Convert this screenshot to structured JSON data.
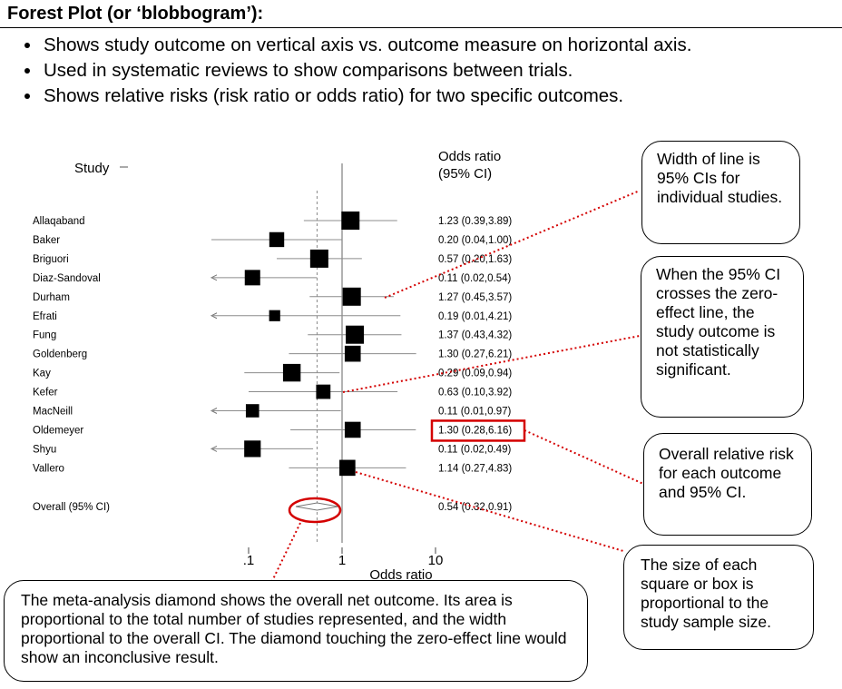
{
  "header": {
    "title": "Forest Plot (or ‘blobbogram’):",
    "bullets": [
      "Shows study outcome on vertical axis vs. outcome measure on horizontal axis.",
      "Used in systematic reviews to show comparisons between trials.",
      "Shows relative risks (risk ratio or odds ratio) for two specific outcomes."
    ]
  },
  "chart_data": {
    "type": "forest",
    "study_header": "Study",
    "or_header_line1": "Odds ratio",
    "or_header_line2": "(95% CI)",
    "xlabel": "Odds ratio",
    "x_scale": "log",
    "xlim": [
      0.04,
      12
    ],
    "xticks": [
      {
        "value": 0.1,
        "label": ".1"
      },
      {
        "value": 1,
        "label": "1"
      },
      {
        "value": 10,
        "label": "10"
      }
    ],
    "studies": [
      {
        "name": "Allaqaband",
        "or": 1.23,
        "lo": 0.39,
        "hi": 3.89,
        "weight": 1.0,
        "label": "1.23 (0.39,3.89)"
      },
      {
        "name": "Baker",
        "or": 0.2,
        "lo": 0.04,
        "hi": 1.0,
        "weight": 0.7,
        "label": "0.20 (0.04,1.00)"
      },
      {
        "name": "Briguori",
        "or": 0.57,
        "lo": 0.2,
        "hi": 1.63,
        "weight": 1.0,
        "label": "0.57 (0.20,1.63)"
      },
      {
        "name": "Diaz-Sandoval",
        "or": 0.11,
        "lo": 0.02,
        "hi": 0.54,
        "weight": 0.75,
        "label": "0.11 (0.02,0.54)"
      },
      {
        "name": "Durham",
        "or": 1.27,
        "lo": 0.45,
        "hi": 3.57,
        "weight": 1.0,
        "label": "1.27 (0.45,3.57)"
      },
      {
        "name": "Efrati",
        "or": 0.19,
        "lo": 0.01,
        "hi": 4.21,
        "weight": 0.35,
        "label": "0.19 (0.01,4.21)"
      },
      {
        "name": "Fung",
        "or": 1.37,
        "lo": 0.43,
        "hi": 4.32,
        "weight": 1.0,
        "label": "1.37 (0.43,4.32)"
      },
      {
        "name": "Goldenberg",
        "or": 1.3,
        "lo": 0.27,
        "hi": 6.21,
        "weight": 0.8,
        "label": "1.30 (0.27,6.21)"
      },
      {
        "name": "Kay",
        "or": 0.29,
        "lo": 0.09,
        "hi": 0.94,
        "weight": 0.95,
        "label": "0.29 (0.09,0.94)"
      },
      {
        "name": "Kefer",
        "or": 0.63,
        "lo": 0.1,
        "hi": 3.92,
        "weight": 0.65,
        "label": "0.63 (0.10,3.92)"
      },
      {
        "name": "MacNeill",
        "or": 0.11,
        "lo": 0.01,
        "hi": 0.97,
        "weight": 0.55,
        "label": "0.11 (0.01,0.97)"
      },
      {
        "name": "Oldemeyer",
        "or": 1.3,
        "lo": 0.28,
        "hi": 6.16,
        "weight": 0.8,
        "label": "1.30 (0.28,6.16)"
      },
      {
        "name": "Shyu",
        "or": 0.11,
        "lo": 0.02,
        "hi": 0.49,
        "weight": 0.85,
        "label": "0.11 (0.02,0.49)"
      },
      {
        "name": "Vallero",
        "or": 1.14,
        "lo": 0.27,
        "hi": 4.83,
        "weight": 0.8,
        "label": "1.14 (0.27,4.83)"
      }
    ],
    "overall": {
      "name": "Overall (95% CI)",
      "or": 0.54,
      "lo": 0.32,
      "hi": 0.91,
      "label": "0.54 (0.32,0.91)"
    },
    "highlight_color": "#d40000"
  },
  "callouts": {
    "line_width": "Width of line is 95% CIs for individual studies.",
    "zero_effect": "When the 95% CI crosses the zero-effect line, the study outcome is not statistically significant.",
    "overall_risk": "Overall relative risk for each outcome and 95% CI.",
    "square_size": "The size of each square or box is proportional to the study sample size.",
    "diamond": "The meta-analysis diamond shows the overall net outcome. Its area is proportional to the total number of studies represented, and the width proportional to the overall CI. The diamond touching the zero-effect line would show an inconclusive result."
  }
}
